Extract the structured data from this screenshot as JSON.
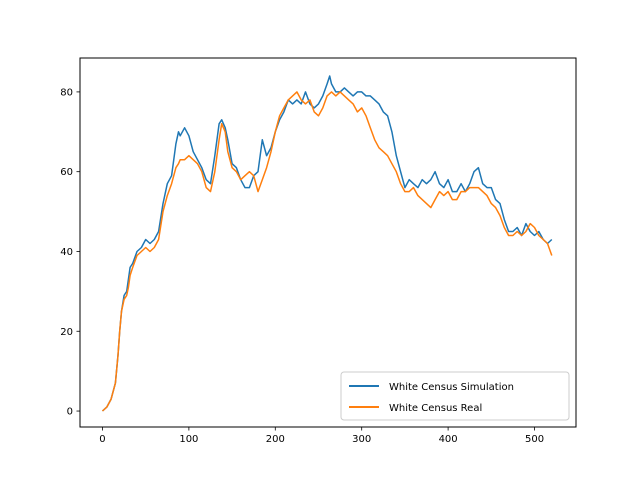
{
  "chart_data": {
    "type": "line",
    "title": "",
    "xlabel": "",
    "ylabel": "",
    "xlim": [
      -26,
      548
    ],
    "ylim": [
      -4,
      88.5
    ],
    "xticks": [
      0,
      100,
      200,
      300,
      400,
      500
    ],
    "yticks": [
      0,
      20,
      40,
      60,
      80
    ],
    "grid": false,
    "legend_position": "lower-right",
    "series": [
      {
        "name": "White Census Simulation",
        "color": "#1f77b4",
        "points": [
          [
            0,
            0
          ],
          [
            5,
            1
          ],
          [
            10,
            3
          ],
          [
            15,
            7
          ],
          [
            18,
            14
          ],
          [
            20,
            20
          ],
          [
            22,
            25
          ],
          [
            25,
            29
          ],
          [
            28,
            30
          ],
          [
            30,
            33
          ],
          [
            32,
            36
          ],
          [
            35,
            37
          ],
          [
            40,
            40
          ],
          [
            45,
            41
          ],
          [
            50,
            43
          ],
          [
            55,
            42
          ],
          [
            60,
            43
          ],
          [
            65,
            45
          ],
          [
            70,
            52
          ],
          [
            75,
            57
          ],
          [
            80,
            59
          ],
          [
            85,
            67
          ],
          [
            88,
            70
          ],
          [
            90,
            69
          ],
          [
            95,
            71
          ],
          [
            100,
            69
          ],
          [
            105,
            65
          ],
          [
            110,
            63
          ],
          [
            115,
            61
          ],
          [
            120,
            58
          ],
          [
            125,
            57
          ],
          [
            130,
            64
          ],
          [
            135,
            72
          ],
          [
            138,
            73
          ],
          [
            142,
            71
          ],
          [
            145,
            68
          ],
          [
            150,
            62
          ],
          [
            155,
            61
          ],
          [
            160,
            58
          ],
          [
            165,
            56
          ],
          [
            170,
            56
          ],
          [
            175,
            59
          ],
          [
            180,
            60
          ],
          [
            185,
            68
          ],
          [
            190,
            64
          ],
          [
            195,
            66
          ],
          [
            200,
            70
          ],
          [
            205,
            73
          ],
          [
            210,
            75
          ],
          [
            215,
            78
          ],
          [
            220,
            77
          ],
          [
            225,
            78
          ],
          [
            230,
            77
          ],
          [
            235,
            80
          ],
          [
            240,
            77
          ],
          [
            245,
            76
          ],
          [
            250,
            77
          ],
          [
            255,
            79
          ],
          [
            260,
            82
          ],
          [
            263,
            84
          ],
          [
            265,
            82
          ],
          [
            270,
            80
          ],
          [
            275,
            80
          ],
          [
            280,
            81
          ],
          [
            285,
            80
          ],
          [
            290,
            79
          ],
          [
            295,
            80
          ],
          [
            300,
            80
          ],
          [
            305,
            79
          ],
          [
            310,
            79
          ],
          [
            315,
            78
          ],
          [
            320,
            77
          ],
          [
            325,
            75
          ],
          [
            330,
            74
          ],
          [
            335,
            70
          ],
          [
            340,
            64
          ],
          [
            345,
            60
          ],
          [
            350,
            56
          ],
          [
            355,
            58
          ],
          [
            360,
            57
          ],
          [
            365,
            56
          ],
          [
            370,
            58
          ],
          [
            375,
            57
          ],
          [
            380,
            58
          ],
          [
            385,
            60
          ],
          [
            390,
            57
          ],
          [
            395,
            56
          ],
          [
            400,
            58
          ],
          [
            405,
            55
          ],
          [
            410,
            55
          ],
          [
            415,
            57
          ],
          [
            420,
            55
          ],
          [
            425,
            57
          ],
          [
            430,
            60
          ],
          [
            435,
            61
          ],
          [
            440,
            57
          ],
          [
            445,
            56
          ],
          [
            450,
            56
          ],
          [
            455,
            53
          ],
          [
            460,
            52
          ],
          [
            465,
            48
          ],
          [
            470,
            45
          ],
          [
            475,
            45
          ],
          [
            480,
            46
          ],
          [
            485,
            44
          ],
          [
            490,
            47
          ],
          [
            495,
            45
          ],
          [
            500,
            44
          ],
          [
            505,
            45
          ],
          [
            510,
            43
          ],
          [
            515,
            42
          ],
          [
            520,
            43
          ]
        ]
      },
      {
        "name": "White Census Real",
        "color": "#ff7f0e",
        "points": [
          [
            0,
            0
          ],
          [
            5,
            1
          ],
          [
            10,
            3
          ],
          [
            15,
            7
          ],
          [
            18,
            14
          ],
          [
            20,
            20
          ],
          [
            22,
            25
          ],
          [
            25,
            28
          ],
          [
            28,
            29
          ],
          [
            30,
            31
          ],
          [
            32,
            34
          ],
          [
            35,
            36
          ],
          [
            40,
            39
          ],
          [
            45,
            40
          ],
          [
            50,
            41
          ],
          [
            55,
            40
          ],
          [
            60,
            41
          ],
          [
            65,
            43
          ],
          [
            70,
            50
          ],
          [
            75,
            54
          ],
          [
            80,
            57
          ],
          [
            85,
            61
          ],
          [
            88,
            62
          ],
          [
            90,
            63
          ],
          [
            95,
            63
          ],
          [
            100,
            64
          ],
          [
            105,
            63
          ],
          [
            110,
            62
          ],
          [
            115,
            60
          ],
          [
            120,
            56
          ],
          [
            125,
            55
          ],
          [
            130,
            60
          ],
          [
            135,
            68
          ],
          [
            138,
            72
          ],
          [
            142,
            70
          ],
          [
            145,
            65
          ],
          [
            150,
            61
          ],
          [
            155,
            60
          ],
          [
            160,
            58
          ],
          [
            165,
            59
          ],
          [
            170,
            60
          ],
          [
            175,
            59
          ],
          [
            180,
            55
          ],
          [
            185,
            58
          ],
          [
            190,
            61
          ],
          [
            195,
            65
          ],
          [
            200,
            70
          ],
          [
            205,
            74
          ],
          [
            210,
            76
          ],
          [
            215,
            78
          ],
          [
            220,
            79
          ],
          [
            225,
            80
          ],
          [
            230,
            78
          ],
          [
            235,
            77
          ],
          [
            240,
            78
          ],
          [
            245,
            75
          ],
          [
            250,
            74
          ],
          [
            255,
            76
          ],
          [
            260,
            79
          ],
          [
            265,
            80
          ],
          [
            270,
            79
          ],
          [
            275,
            80
          ],
          [
            280,
            79
          ],
          [
            285,
            78
          ],
          [
            290,
            77
          ],
          [
            295,
            75
          ],
          [
            300,
            76
          ],
          [
            305,
            74
          ],
          [
            310,
            71
          ],
          [
            315,
            68
          ],
          [
            320,
            66
          ],
          [
            325,
            65
          ],
          [
            330,
            64
          ],
          [
            335,
            62
          ],
          [
            340,
            60
          ],
          [
            345,
            57
          ],
          [
            350,
            55
          ],
          [
            355,
            55
          ],
          [
            360,
            56
          ],
          [
            365,
            54
          ],
          [
            370,
            53
          ],
          [
            375,
            52
          ],
          [
            380,
            51
          ],
          [
            385,
            53
          ],
          [
            390,
            55
          ],
          [
            395,
            54
          ],
          [
            400,
            55
          ],
          [
            405,
            53
          ],
          [
            410,
            53
          ],
          [
            415,
            55
          ],
          [
            420,
            55
          ],
          [
            425,
            56
          ],
          [
            430,
            56
          ],
          [
            435,
            56
          ],
          [
            440,
            55
          ],
          [
            445,
            54
          ],
          [
            450,
            52
          ],
          [
            455,
            51
          ],
          [
            460,
            49
          ],
          [
            465,
            46
          ],
          [
            470,
            44
          ],
          [
            475,
            44
          ],
          [
            480,
            45
          ],
          [
            485,
            44
          ],
          [
            490,
            45
          ],
          [
            495,
            47
          ],
          [
            500,
            46
          ],
          [
            505,
            44
          ],
          [
            510,
            43
          ],
          [
            515,
            42
          ],
          [
            520,
            39
          ]
        ]
      }
    ]
  }
}
